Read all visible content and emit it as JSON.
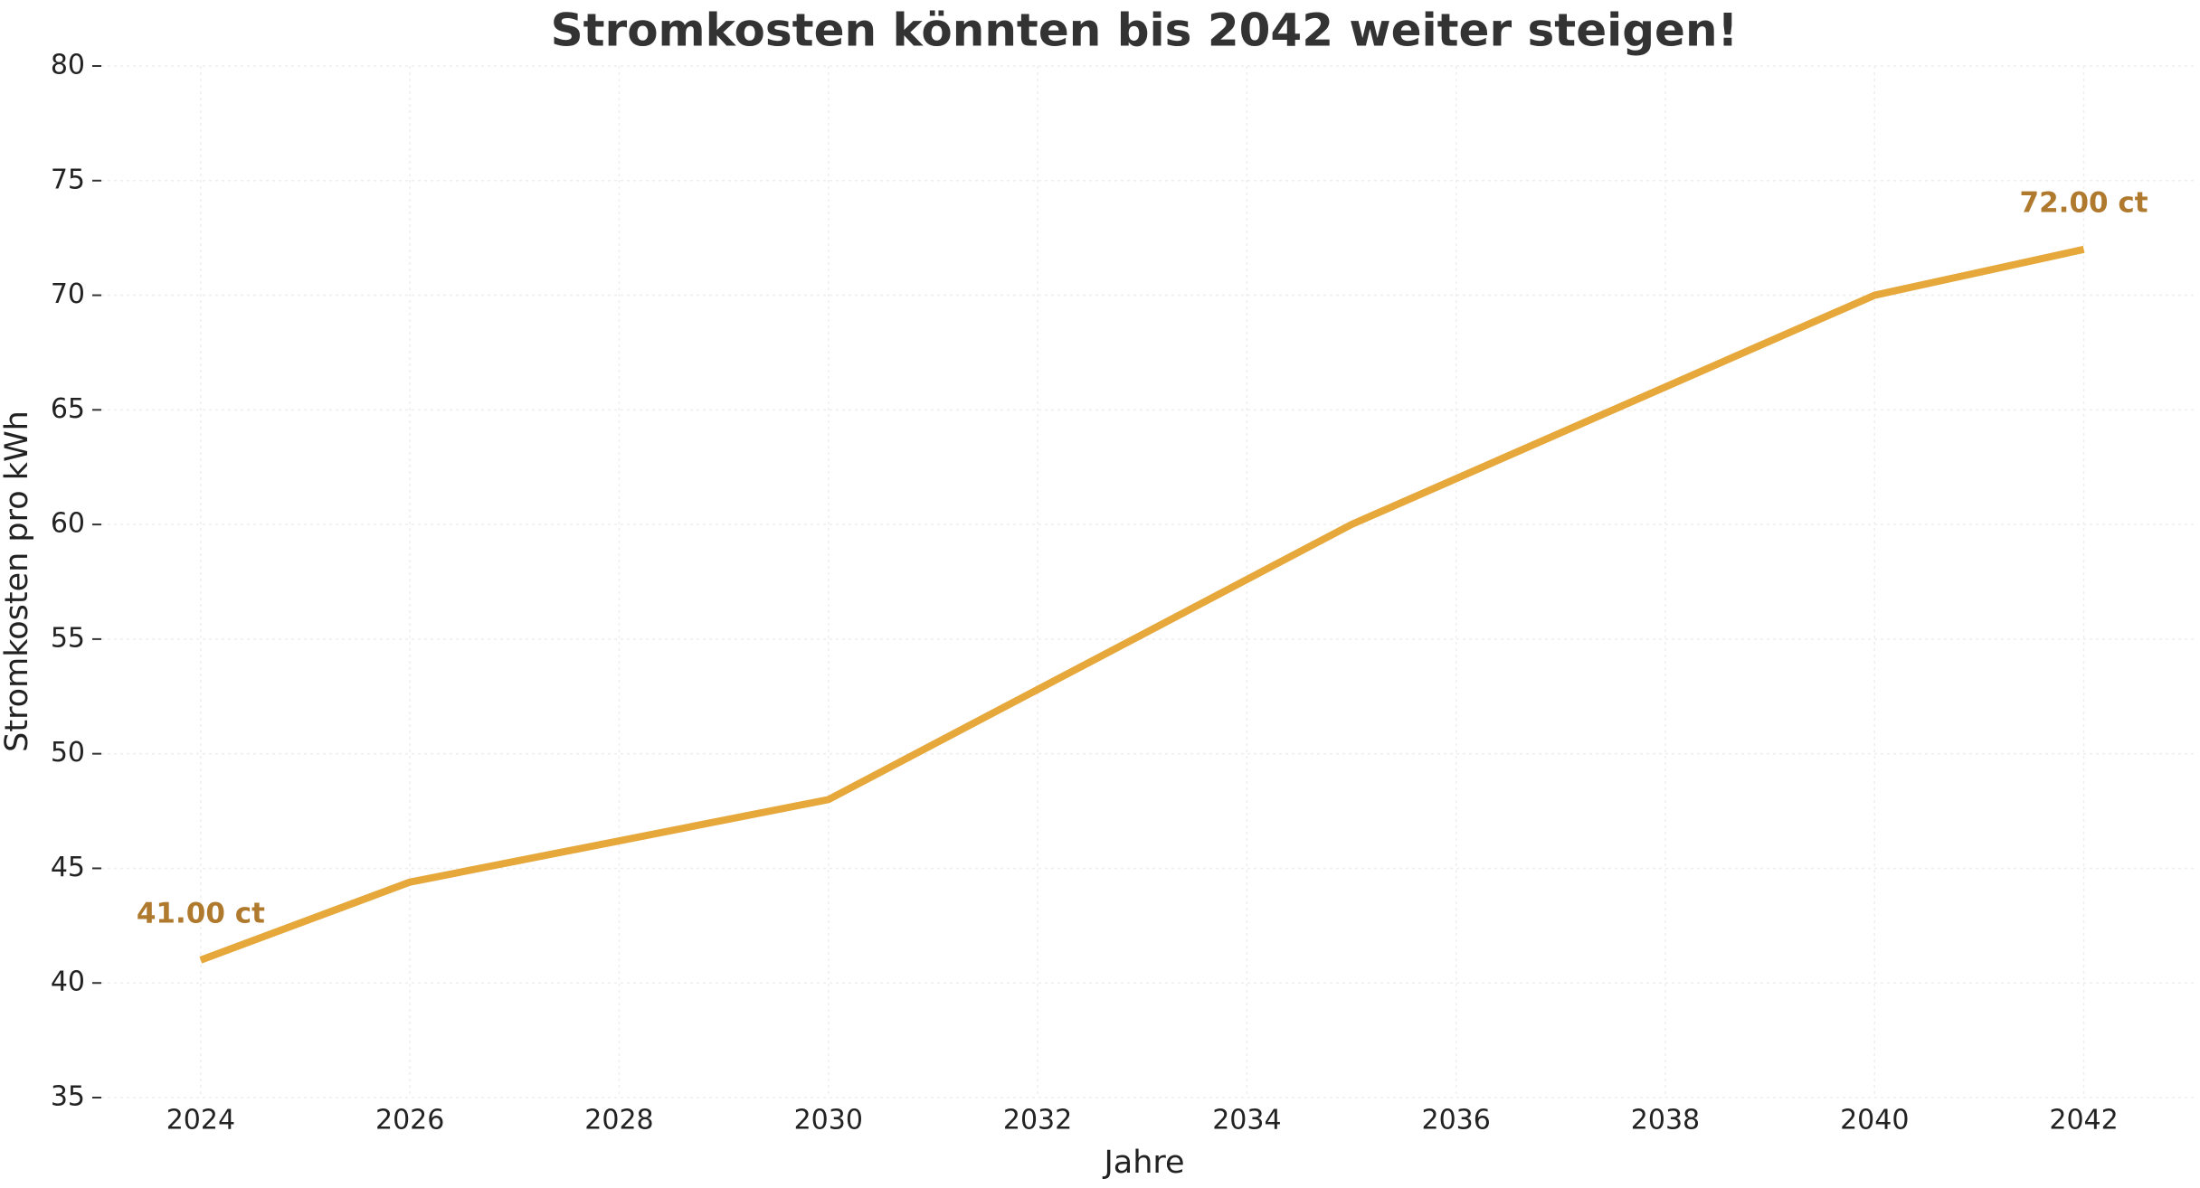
{
  "chart_data": {
    "type": "line",
    "title": "Stromkosten könnten bis 2042 weiter steigen!",
    "x_label": "Jahre",
    "y_label": "Stromkosten pro kWh",
    "x": [
      2024,
      2026,
      2030,
      2035,
      2040,
      2042
    ],
    "series": [
      {
        "name": "Stromkosten",
        "color": "#e6a83b",
        "values": [
          41,
          44.4,
          48,
          60,
          70,
          72
        ],
        "value_labels": [
          "41.00 ct",
          null,
          null,
          null,
          null,
          "72.00 ct"
        ],
        "label_color": "#b07a2e"
      }
    ],
    "xlim": [
      2023.05,
      2043.05
    ],
    "ylim": [
      35,
      80
    ],
    "xticks": [
      2024,
      2026,
      2028,
      2030,
      2032,
      2034,
      2036,
      2038,
      2040,
      2042
    ],
    "yticks": [
      35,
      40,
      45,
      50,
      55,
      60,
      65,
      70,
      75,
      80
    ],
    "grid": true
  }
}
